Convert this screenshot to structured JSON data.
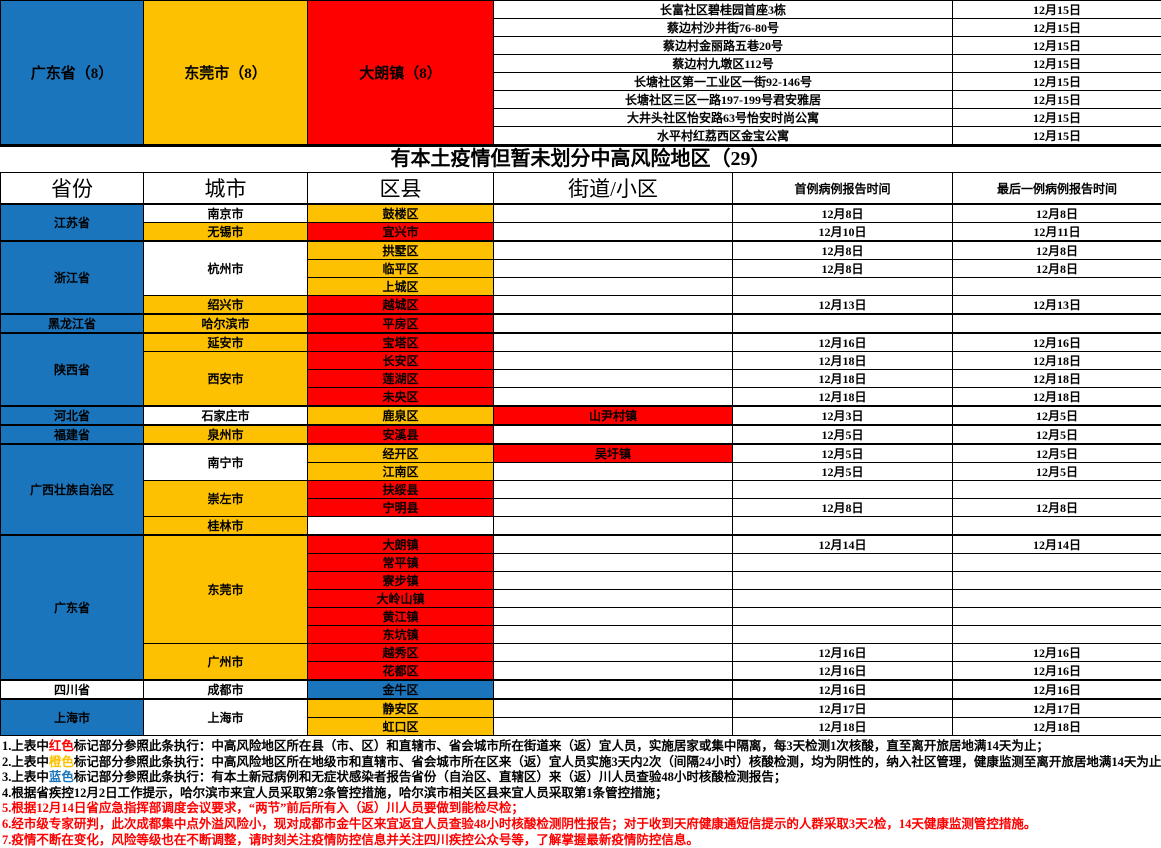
{
  "colors": {
    "blue": "#1B75BC",
    "yellow": "#FDC101",
    "red": "#FE0000"
  },
  "top_summary": {
    "province": "广东省（8）",
    "city": "东莞市（8）",
    "district": "大朗镇（8）",
    "entries": [
      {
        "address": "长富社区碧桂园首座3栋",
        "date": "12月15日"
      },
      {
        "address": "蔡边村沙井街76-80号",
        "date": "12月15日"
      },
      {
        "address": "蔡边村金丽路五巷20号",
        "date": "12月15日"
      },
      {
        "address": "蔡边村九墩区112号",
        "date": "12月15日"
      },
      {
        "address": "长塘社区第一工业区一街92-146号",
        "date": "12月15日"
      },
      {
        "address": "长塘社区三区一路197-199号君安雅居",
        "date": "12月15日"
      },
      {
        "address": "大井头社区怡安路63号怡安时尚公寓",
        "date": "12月15日"
      },
      {
        "address": "水平村红荔西区金宝公寓",
        "date": "12月15日"
      }
    ]
  },
  "section_title": "有本土疫情但暂未划分中高风险地区（29）",
  "risk_table": {
    "headers": [
      "省份",
      "城市",
      "区县",
      "街道/小区",
      "首例病例报告时间",
      "最后一例病例报告时间"
    ],
    "rows": [
      {
        "group_start": true,
        "cells": [
          {
            "col": "province",
            "text": "江苏省",
            "bg": "blue",
            "rs": 2
          },
          {
            "col": "city",
            "text": "南京市"
          },
          {
            "col": "district",
            "text": "鼓楼区",
            "bg": "yellow"
          },
          {
            "col": "street",
            "text": ""
          },
          {
            "col": "first-date",
            "text": "12月8日"
          },
          {
            "col": "last-date",
            "text": "12月8日"
          }
        ]
      },
      {
        "cells": [
          {
            "col": "city",
            "text": "无锡市",
            "bg": "yellow"
          },
          {
            "col": "district",
            "text": "宜兴市",
            "bg": "red"
          },
          {
            "col": "street",
            "text": ""
          },
          {
            "col": "first-date",
            "text": "12月10日"
          },
          {
            "col": "last-date",
            "text": "12月11日"
          }
        ]
      },
      {
        "group_start": true,
        "cells": [
          {
            "col": "province",
            "text": "浙江省",
            "bg": "blue",
            "rs": 4
          },
          {
            "col": "city",
            "text": "杭州市",
            "rs": 3
          },
          {
            "col": "district",
            "text": "拱墅区",
            "bg": "yellow"
          },
          {
            "col": "street",
            "text": ""
          },
          {
            "col": "first-date",
            "text": "12月8日"
          },
          {
            "col": "last-date",
            "text": "12月8日"
          }
        ]
      },
      {
        "cells": [
          {
            "col": "district",
            "text": "临平区",
            "bg": "yellow"
          },
          {
            "col": "street",
            "text": ""
          },
          {
            "col": "first-date",
            "text": "12月8日"
          },
          {
            "col": "last-date",
            "text": "12月8日"
          }
        ]
      },
      {
        "cells": [
          {
            "col": "district",
            "text": "上城区",
            "bg": "yellow"
          },
          {
            "col": "street",
            "text": ""
          },
          {
            "col": "first-date",
            "text": ""
          },
          {
            "col": "last-date",
            "text": ""
          }
        ]
      },
      {
        "cells": [
          {
            "col": "city",
            "text": "绍兴市",
            "bg": "yellow"
          },
          {
            "col": "district",
            "text": "越城区",
            "bg": "red"
          },
          {
            "col": "street",
            "text": ""
          },
          {
            "col": "first-date",
            "text": "12月13日"
          },
          {
            "col": "last-date",
            "text": "12月13日"
          }
        ]
      },
      {
        "group_start": true,
        "cells": [
          {
            "col": "province",
            "text": "黑龙江省",
            "bg": "blue"
          },
          {
            "col": "city",
            "text": "哈尔滨市",
            "bg": "yellow"
          },
          {
            "col": "district",
            "text": "平房区",
            "bg": "red"
          },
          {
            "col": "street",
            "text": ""
          },
          {
            "col": "first-date",
            "text": ""
          },
          {
            "col": "last-date",
            "text": ""
          }
        ]
      },
      {
        "group_start": true,
        "cells": [
          {
            "col": "province",
            "text": "陕西省",
            "bg": "blue",
            "rs": 4
          },
          {
            "col": "city",
            "text": "延安市",
            "bg": "yellow"
          },
          {
            "col": "district",
            "text": "宝塔区",
            "bg": "red"
          },
          {
            "col": "street",
            "text": ""
          },
          {
            "col": "first-date",
            "text": "12月16日"
          },
          {
            "col": "last-date",
            "text": "12月16日"
          }
        ]
      },
      {
        "cells": [
          {
            "col": "city",
            "text": "西安市",
            "bg": "yellow",
            "rs": 3
          },
          {
            "col": "district",
            "text": "长安区",
            "bg": "red"
          },
          {
            "col": "street",
            "text": ""
          },
          {
            "col": "first-date",
            "text": "12月18日"
          },
          {
            "col": "last-date",
            "text": "12月18日"
          }
        ]
      },
      {
        "cells": [
          {
            "col": "district",
            "text": "莲湖区",
            "bg": "red"
          },
          {
            "col": "street",
            "text": ""
          },
          {
            "col": "first-date",
            "text": "12月18日"
          },
          {
            "col": "last-date",
            "text": "12月18日"
          }
        ]
      },
      {
        "cells": [
          {
            "col": "district",
            "text": "未央区",
            "bg": "red"
          },
          {
            "col": "street",
            "text": ""
          },
          {
            "col": "first-date",
            "text": "12月18日"
          },
          {
            "col": "last-date",
            "text": "12月18日"
          }
        ]
      },
      {
        "group_start": true,
        "cells": [
          {
            "col": "province",
            "text": "河北省",
            "bg": "blue"
          },
          {
            "col": "city",
            "text": "石家庄市"
          },
          {
            "col": "district",
            "text": "鹿泉区",
            "bg": "yellow"
          },
          {
            "col": "street",
            "text": "山尹村镇",
            "bg": "red"
          },
          {
            "col": "first-date",
            "text": "12月3日"
          },
          {
            "col": "last-date",
            "text": "12月5日"
          }
        ]
      },
      {
        "group_start": true,
        "cells": [
          {
            "col": "province",
            "text": "福建省",
            "bg": "blue"
          },
          {
            "col": "city",
            "text": "泉州市",
            "bg": "yellow"
          },
          {
            "col": "district",
            "text": "安溪县",
            "bg": "red"
          },
          {
            "col": "street",
            "text": ""
          },
          {
            "col": "first-date",
            "text": "12月5日"
          },
          {
            "col": "last-date",
            "text": "12月5日"
          }
        ]
      },
      {
        "group_start": true,
        "cells": [
          {
            "col": "province",
            "text": "广西壮族自治区",
            "bg": "blue",
            "rs": 5
          },
          {
            "col": "city",
            "text": "南宁市",
            "rs": 2
          },
          {
            "col": "district",
            "text": "经开区",
            "bg": "yellow"
          },
          {
            "col": "street",
            "text": "吴圩镇",
            "bg": "red"
          },
          {
            "col": "first-date",
            "text": "12月5日"
          },
          {
            "col": "last-date",
            "text": "12月5日"
          }
        ]
      },
      {
        "cells": [
          {
            "col": "district",
            "text": "江南区",
            "bg": "yellow"
          },
          {
            "col": "street",
            "text": ""
          },
          {
            "col": "first-date",
            "text": "12月5日"
          },
          {
            "col": "last-date",
            "text": "12月5日"
          }
        ]
      },
      {
        "cells": [
          {
            "col": "city",
            "text": "崇左市",
            "bg": "yellow",
            "rs": 2
          },
          {
            "col": "district",
            "text": "扶绥县",
            "bg": "red"
          },
          {
            "col": "street",
            "text": ""
          },
          {
            "col": "first-date",
            "text": ""
          },
          {
            "col": "last-date",
            "text": ""
          }
        ]
      },
      {
        "cells": [
          {
            "col": "district",
            "text": "宁明县",
            "bg": "red"
          },
          {
            "col": "street",
            "text": ""
          },
          {
            "col": "first-date",
            "text": "12月8日"
          },
          {
            "col": "last-date",
            "text": "12月8日"
          }
        ]
      },
      {
        "cells": [
          {
            "col": "city",
            "text": "桂林市",
            "bg": "yellow"
          },
          {
            "col": "district",
            "text": ""
          },
          {
            "col": "street",
            "text": ""
          },
          {
            "col": "first-date",
            "text": ""
          },
          {
            "col": "last-date",
            "text": ""
          }
        ]
      },
      {
        "group_start": true,
        "cells": [
          {
            "col": "province",
            "text": "广东省",
            "bg": "blue",
            "rs": 8
          },
          {
            "col": "city",
            "text": "东莞市",
            "bg": "yellow",
            "rs": 6
          },
          {
            "col": "district",
            "text": "大朗镇",
            "bg": "red"
          },
          {
            "col": "street",
            "text": ""
          },
          {
            "col": "first-date",
            "text": "12月14日"
          },
          {
            "col": "last-date",
            "text": "12月14日"
          }
        ]
      },
      {
        "cells": [
          {
            "col": "district",
            "text": "常平镇",
            "bg": "red"
          },
          {
            "col": "street",
            "text": ""
          },
          {
            "col": "first-date",
            "text": ""
          },
          {
            "col": "last-date",
            "text": ""
          }
        ]
      },
      {
        "cells": [
          {
            "col": "district",
            "text": "寮步镇",
            "bg": "red"
          },
          {
            "col": "street",
            "text": ""
          },
          {
            "col": "first-date",
            "text": ""
          },
          {
            "col": "last-date",
            "text": ""
          }
        ]
      },
      {
        "cells": [
          {
            "col": "district",
            "text": "大岭山镇",
            "bg": "red"
          },
          {
            "col": "street",
            "text": ""
          },
          {
            "col": "first-date",
            "text": ""
          },
          {
            "col": "last-date",
            "text": ""
          }
        ]
      },
      {
        "cells": [
          {
            "col": "district",
            "text": "黄江镇",
            "bg": "red"
          },
          {
            "col": "street",
            "text": ""
          },
          {
            "col": "first-date",
            "text": ""
          },
          {
            "col": "last-date",
            "text": ""
          }
        ]
      },
      {
        "cells": [
          {
            "col": "district",
            "text": "东坑镇",
            "bg": "red"
          },
          {
            "col": "street",
            "text": ""
          },
          {
            "col": "first-date",
            "text": ""
          },
          {
            "col": "last-date",
            "text": ""
          }
        ]
      },
      {
        "cells": [
          {
            "col": "city",
            "text": "广州市",
            "bg": "yellow",
            "rs": 2
          },
          {
            "col": "district",
            "text": "越秀区",
            "bg": "red"
          },
          {
            "col": "street",
            "text": ""
          },
          {
            "col": "first-date",
            "text": "12月16日"
          },
          {
            "col": "last-date",
            "text": "12月16日"
          }
        ]
      },
      {
        "cells": [
          {
            "col": "district",
            "text": "花都区",
            "bg": "red"
          },
          {
            "col": "street",
            "text": ""
          },
          {
            "col": "first-date",
            "text": "12月16日"
          },
          {
            "col": "last-date",
            "text": "12月16日"
          }
        ]
      },
      {
        "group_start": true,
        "cells": [
          {
            "col": "province",
            "text": "四川省"
          },
          {
            "col": "city",
            "text": "成都市"
          },
          {
            "col": "district",
            "text": "金牛区",
            "bg": "blue"
          },
          {
            "col": "street",
            "text": ""
          },
          {
            "col": "first-date",
            "text": "12月16日"
          },
          {
            "col": "last-date",
            "text": "12月16日"
          }
        ]
      },
      {
        "group_start": true,
        "cells": [
          {
            "col": "province",
            "text": "上海市",
            "bg": "blue",
            "rs": 2
          },
          {
            "col": "city",
            "text": "上海市",
            "rs": 2
          },
          {
            "col": "district",
            "text": "静安区",
            "bg": "yellow"
          },
          {
            "col": "street",
            "text": ""
          },
          {
            "col": "first-date",
            "text": "12月17日"
          },
          {
            "col": "last-date",
            "text": "12月17日"
          }
        ]
      },
      {
        "cells": [
          {
            "col": "district",
            "text": "虹口区",
            "bg": "yellow"
          },
          {
            "col": "street",
            "text": ""
          },
          {
            "col": "first-date",
            "text": "12月18日"
          },
          {
            "col": "last-date",
            "text": "12月18日"
          }
        ]
      }
    ]
  },
  "footnotes": [
    {
      "parts": [
        {
          "text": "1.上表中"
        },
        {
          "text": "红色",
          "color": "#FE0000"
        },
        {
          "text": "标记部分参照此条执行：中高风险地区所在县（市、区）和直辖市、省会城市所在街道来（返）宜人员，实施居家或集中隔离，每3天检测1次核酸，直至离开旅居地满14天为止；"
        }
      ]
    },
    {
      "parts": [
        {
          "text": "2.上表中"
        },
        {
          "text": "橙色",
          "color": "#FDC101"
        },
        {
          "text": "标记部分参照此条执行：中高风险地区所在地级市和直辖市、省会城市所在区来（返）宜人员实施3天内2次（间隔24小时）核酸检测，均为阴性的，纳入社区管理，健康监测至离开旅居地满14天为止；"
        }
      ]
    },
    {
      "parts": [
        {
          "text": "3.上表中"
        },
        {
          "text": "蓝色",
          "color": "#1B75BC"
        },
        {
          "text": "标记部分参照此条执行：有本土新冠病例和无症状感染者报告省份（自治区、直辖区）来（返）川人员查验48小时核酸检测报告；"
        }
      ]
    },
    {
      "parts": [
        {
          "text": "4.根据省疾控12月2日工作提示，哈尔滨市来宜人员采取第2条管控措施，哈尔滨市相关区县来宜人员采取第1条管控措施；"
        }
      ]
    },
    {
      "color": "#FE0000",
      "parts": [
        {
          "text": "5.根据12月14日省应急指挥部调度会议要求，“两节”前后所有入（返）川人员要做到能检尽检；"
        }
      ]
    },
    {
      "color": "#FE0000",
      "parts": [
        {
          "text": "6.经市级专家研判，此次成都集中点外溢风险小，现对成都市金牛区来宜返宜人员查验48小时核酸检测阴性报告；对于收到天府健康通短信提示的人群采取3天2检，14天健康监测管控措施。"
        }
      ]
    },
    {
      "color": "#FE0000",
      "parts": [
        {
          "text": "7.疫情不断在变化，风险等级也在不断调整，请时刻关注疫情防控信息并关注四川疾控公众号等，了解掌握最新疫情防控信息。"
        }
      ]
    }
  ]
}
